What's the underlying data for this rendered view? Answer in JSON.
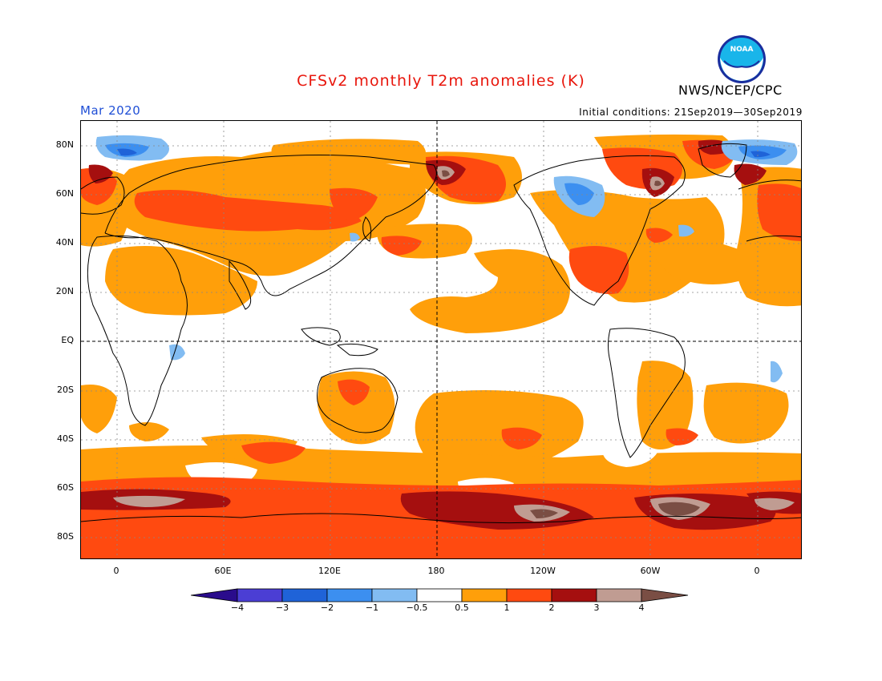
{
  "title": "CFSv2 monthly T2m anomalies (K)",
  "agency": "NWS/NCEP/CPC",
  "logo_text": "NOAA",
  "valid_month": "Mar 2020",
  "initial_conditions": "Initial conditions: 21Sep2019—30Sep2019",
  "lat_labels": [
    "80N",
    "60N",
    "40N",
    "20N",
    "EQ",
    "20S",
    "40S",
    "60S",
    "80S"
  ],
  "lon_labels": [
    "0",
    "60E",
    "120E",
    "180",
    "120W",
    "60W",
    "0"
  ],
  "colorbar": {
    "labels": [
      "−4",
      "−3",
      "−2",
      "−1",
      "−0.5",
      "0.5",
      "1",
      "2",
      "3",
      "4"
    ],
    "colors": [
      "#2a0c8c",
      "#4b3ed4",
      "#1f63d8",
      "#3c8ff0",
      "#82bcf2",
      "#ffffff",
      "#ff9f0a",
      "#ff4a10",
      "#a50f0f",
      "#c09c92",
      "#7a4e44"
    ]
  },
  "anomaly_colors": {
    "cold_strong": "#2a0c8c",
    "cold": "#3c8ff0",
    "cold_weak": "#82bcf2",
    "neutral": "#ffffff",
    "warm_weak": "#ff9f0a",
    "warm": "#ff4a10",
    "warm_strong": "#a50f0f",
    "hot": "#c09c92",
    "very_hot": "#7a4e44"
  }
}
